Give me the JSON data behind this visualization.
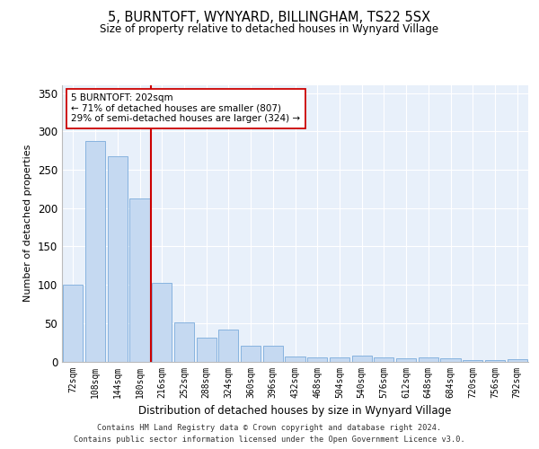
{
  "title1": "5, BURNTOFT, WYNYARD, BILLINGHAM, TS22 5SX",
  "title2": "Size of property relative to detached houses in Wynyard Village",
  "xlabel": "Distribution of detached houses by size in Wynyard Village",
  "ylabel": "Number of detached properties",
  "bar_color": "#c5d9f1",
  "bar_edge_color": "#7aabdb",
  "background_color": "#e8f0fa",
  "vline_color": "#cc0000",
  "vline_x": 3.5,
  "annotation_text": "5 BURNTOFT: 202sqm\n← 71% of detached houses are smaller (807)\n29% of semi-detached houses are larger (324) →",
  "annotation_box_color": "white",
  "annotation_box_edge": "#cc0000",
  "categories": [
    "72sqm",
    "108sqm",
    "144sqm",
    "180sqm",
    "216sqm",
    "252sqm",
    "288sqm",
    "324sqm",
    "360sqm",
    "396sqm",
    "432sqm",
    "468sqm",
    "504sqm",
    "540sqm",
    "576sqm",
    "612sqm",
    "648sqm",
    "684sqm",
    "720sqm",
    "756sqm",
    "792sqm"
  ],
  "values": [
    100,
    287,
    267,
    212,
    103,
    51,
    31,
    41,
    20,
    20,
    7,
    5,
    5,
    8,
    5,
    4,
    5,
    4,
    2,
    2,
    3
  ],
  "ylim": [
    0,
    360
  ],
  "yticks": [
    0,
    50,
    100,
    150,
    200,
    250,
    300,
    350
  ],
  "footer1": "Contains HM Land Registry data © Crown copyright and database right 2024.",
  "footer2": "Contains public sector information licensed under the Open Government Licence v3.0."
}
